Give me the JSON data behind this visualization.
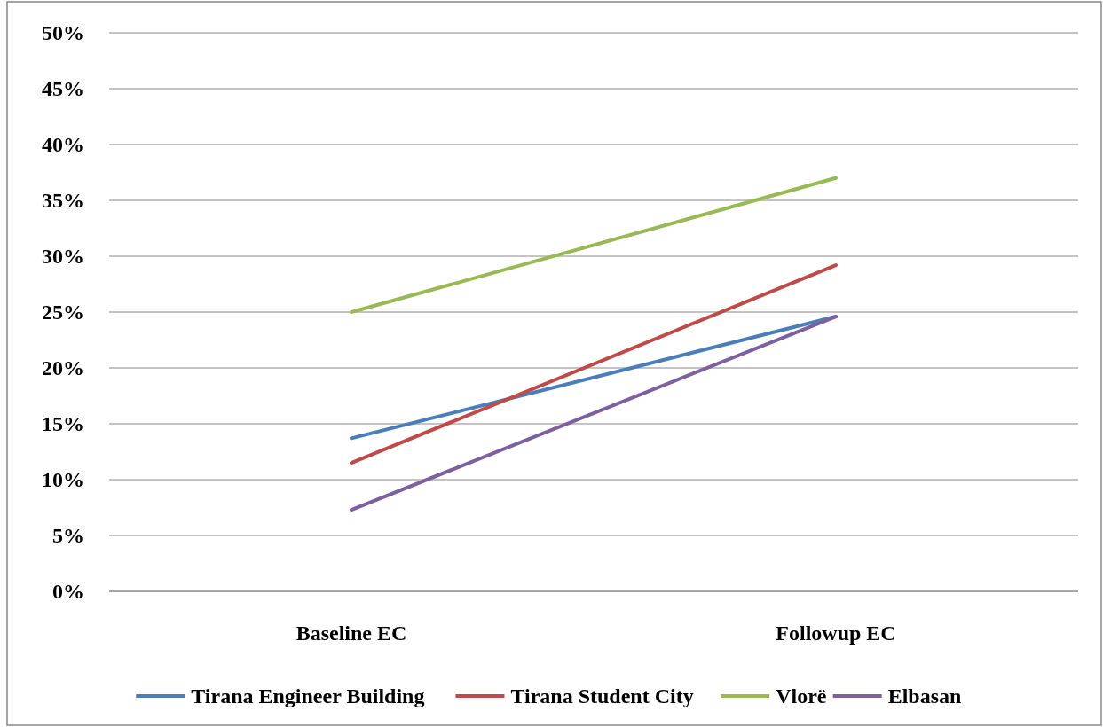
{
  "chart_data": {
    "type": "line",
    "categories": [
      "Baseline EC",
      "Followup EC"
    ],
    "series": [
      {
        "name": "Tirana Engineer Building",
        "color": "#4a7ebb",
        "values": [
          13.7,
          24.6
        ]
      },
      {
        "name": "Tirana Student City",
        "color": "#be4b48",
        "values": [
          11.5,
          29.2
        ]
      },
      {
        "name": "Vlorë",
        "color": "#98b954",
        "values": [
          25.0,
          37.0
        ]
      },
      {
        "name": "Elbasan",
        "color": "#7d60a0",
        "values": [
          7.3,
          24.6
        ]
      }
    ],
    "ylim": [
      0,
      50
    ],
    "yticks": [
      {
        "value": 0,
        "label": "0%"
      },
      {
        "value": 5,
        "label": "5%"
      },
      {
        "value": 10,
        "label": "10%"
      },
      {
        "value": 15,
        "label": "15%"
      },
      {
        "value": 20,
        "label": "20%"
      },
      {
        "value": 25,
        "label": "25%"
      },
      {
        "value": 30,
        "label": "30%"
      },
      {
        "value": 35,
        "label": "35%"
      },
      {
        "value": 40,
        "label": "40%"
      },
      {
        "value": 45,
        "label": "45%"
      },
      {
        "value": 50,
        "label": "50%"
      }
    ],
    "grid": "y",
    "legend": "bottom",
    "marker": "none",
    "line_style": "solid"
  }
}
